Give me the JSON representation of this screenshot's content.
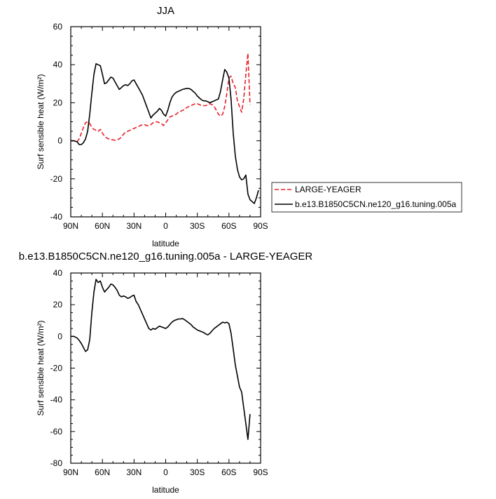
{
  "chart_data": [
    {
      "type": "line",
      "title": "JJA",
      "xlabel": "latitude",
      "ylabel": "Surf sensible heat (W/m²)",
      "xlim": [
        90,
        -90
      ],
      "ylim": [
        -40,
        60
      ],
      "xticks": [
        "90N",
        "60N",
        "30N",
        "0",
        "30S",
        "60S",
        "90S"
      ],
      "yticks": [
        "-40",
        "-20",
        "0",
        "20",
        "40",
        "60"
      ],
      "legend": "right",
      "series": [
        {
          "name": "LARGE-YEAGER",
          "color": "#e8202a",
          "dash": true,
          "x": [
            90,
            87,
            84,
            82,
            80,
            78,
            76,
            74,
            72,
            70,
            68,
            66,
            64,
            62,
            60,
            58,
            56,
            54,
            52,
            50,
            48,
            46,
            44,
            42,
            40,
            38,
            36,
            34,
            32,
            30,
            28,
            26,
            24,
            22,
            20,
            18,
            16,
            14,
            12,
            10,
            8,
            6,
            4,
            2,
            0,
            -2,
            -4,
            -6,
            -8,
            -10,
            -12,
            -14,
            -16,
            -18,
            -20,
            -22,
            -24,
            -26,
            -28,
            -30,
            -32,
            -34,
            -36,
            -38,
            -40,
            -42,
            -44,
            -46,
            -48,
            -50,
            -52,
            -54,
            -56,
            -58,
            -60,
            -62,
            -64,
            -66,
            -68,
            -70,
            -72,
            -74,
            -76,
            -78,
            -80
          ],
          "y": [
            0,
            0,
            -0.5,
            1,
            4,
            7,
            9.5,
            10,
            9,
            7,
            6,
            5.5,
            5,
            6,
            4,
            2.5,
            1.5,
            1,
            0.5,
            0.5,
            0.3,
            0.5,
            1,
            2,
            3.5,
            4.5,
            5,
            5.5,
            6,
            6.5,
            7,
            7.5,
            8,
            8.5,
            8.5,
            8,
            8,
            8.5,
            9.5,
            10,
            10,
            9.5,
            9,
            8,
            9.5,
            11,
            12.5,
            13,
            13.5,
            14,
            15,
            15.5,
            16,
            16.5,
            17.5,
            18,
            18.5,
            19,
            19.5,
            19.5,
            19,
            18.5,
            18.5,
            18.5,
            19,
            19.5,
            19,
            18,
            16,
            14,
            13,
            14,
            18,
            25,
            33,
            34,
            30,
            28,
            21,
            18,
            15,
            22,
            35,
            46,
            19
          ]
        },
        {
          "name": "b.e13.B1850C5CN.ne120_g16.tuning.005a",
          "color": "#000000",
          "dash": false,
          "x": [
            90,
            87,
            84,
            82,
            80,
            78,
            76,
            74,
            72,
            70,
            68,
            66,
            64,
            62,
            60,
            58,
            56,
            54,
            52,
            50,
            48,
            46,
            44,
            42,
            40,
            38,
            36,
            34,
            32,
            30,
            28,
            26,
            24,
            22,
            20,
            18,
            16,
            14,
            12,
            10,
            8,
            6,
            4,
            2,
            0,
            -2,
            -4,
            -6,
            -8,
            -10,
            -12,
            -14,
            -16,
            -18,
            -20,
            -22,
            -24,
            -26,
            -28,
            -30,
            -32,
            -34,
            -36,
            -38,
            -40,
            -42,
            -44,
            -46,
            -48,
            -50,
            -52,
            -54,
            -56,
            -58,
            -60,
            -62,
            -64,
            -66,
            -68,
            -70,
            -72,
            -74,
            -76,
            -78,
            -80,
            -82,
            -84,
            -86,
            -88
          ],
          "y": [
            0,
            0,
            -0.5,
            -2,
            -2,
            -1,
            1,
            5,
            14,
            25,
            35,
            40.5,
            40,
            39.5,
            35,
            30,
            30.5,
            32,
            33.5,
            33,
            31,
            29,
            27,
            28,
            29,
            29.5,
            29,
            30,
            31.5,
            32,
            30,
            28,
            26,
            24,
            21,
            18,
            15,
            12,
            13.5,
            14.5,
            15.5,
            17,
            16,
            14,
            13,
            16,
            20,
            23,
            24.5,
            25.5,
            26,
            26.5,
            27,
            27.3,
            27.5,
            27.5,
            27,
            26,
            25,
            23.5,
            22.5,
            21.5,
            21,
            21,
            20.5,
            20,
            20.5,
            21,
            21.5,
            22,
            26,
            32,
            37.5,
            36,
            33,
            22,
            4,
            -8,
            -15,
            -19,
            -20.5,
            -20,
            -18,
            -28,
            -31,
            -32,
            -33,
            -30,
            -26
          ]
        }
      ]
    },
    {
      "type": "line",
      "title": "b.e13.B1850C5CN.ne120_g16.tuning.005a - LARGE-YEAGER",
      "xlabel": "latitude",
      "ylabel": "Surf sensible heat (W/m²)",
      "xlim": [
        90,
        -90
      ],
      "ylim": [
        -80,
        40
      ],
      "xticks": [
        "90N",
        "60N",
        "30N",
        "0",
        "30S",
        "60S",
        "90S"
      ],
      "yticks": [
        "-80",
        "-60",
        "-40",
        "-20",
        "0",
        "20",
        "40"
      ],
      "series": [
        {
          "color": "#000000",
          "dash": false,
          "x": [
            90,
            87,
            84,
            82,
            80,
            78,
            76,
            74,
            72,
            70,
            68,
            66,
            64,
            62,
            60,
            58,
            56,
            54,
            52,
            50,
            48,
            46,
            44,
            42,
            40,
            38,
            36,
            34,
            32,
            30,
            28,
            26,
            24,
            22,
            20,
            18,
            16,
            14,
            12,
            10,
            8,
            6,
            4,
            2,
            0,
            -2,
            -4,
            -6,
            -8,
            -10,
            -12,
            -14,
            -16,
            -18,
            -20,
            -22,
            -24,
            -26,
            -28,
            -30,
            -32,
            -34,
            -36,
            -38,
            -40,
            -42,
            -44,
            -46,
            -48,
            -50,
            -52,
            -54,
            -56,
            -58,
            -60,
            -62,
            -64,
            -66,
            -68,
            -70,
            -72,
            -74,
            -76,
            -78,
            -80
          ],
          "y": [
            0,
            0,
            -1,
            -2.5,
            -4.5,
            -7,
            -9.5,
            -8.5,
            -2,
            15,
            28,
            36,
            34,
            35,
            31,
            28,
            29.5,
            31,
            33,
            32.5,
            31,
            29,
            26,
            25,
            25.5,
            25,
            24,
            24.5,
            25.5,
            26,
            22,
            20,
            17,
            14,
            11,
            8,
            5,
            4,
            5,
            4.5,
            5.5,
            6.5,
            6,
            5.5,
            5,
            6,
            7.5,
            9,
            10,
            10.5,
            11,
            11,
            11.3,
            10.5,
            9.5,
            8.5,
            7.5,
            6,
            5,
            4,
            3.5,
            3,
            2.5,
            1.5,
            1,
            2,
            3.5,
            5,
            6,
            7,
            8,
            9,
            8.5,
            9,
            8,
            2,
            -8,
            -18,
            -25,
            -32,
            -35,
            -45,
            -55,
            -65,
            -49
          ]
        }
      ]
    }
  ]
}
